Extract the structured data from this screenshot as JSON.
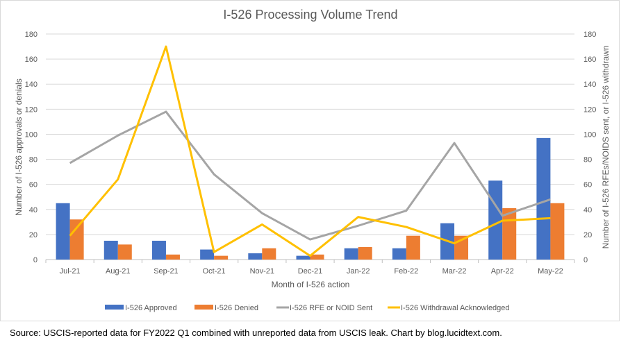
{
  "chart_data": {
    "type": "bar+line",
    "title": "I-526 Processing Volume Trend",
    "xlabel": "Month of I-526 action",
    "ylabel_left": "Number of I-526 approvals or denials",
    "ylabel_right": "Number of I-526 RFEs/NOIDS sent, or I-526 withdrawn",
    "categories": [
      "Jul-21",
      "Aug-21",
      "Sep-21",
      "Oct-21",
      "Nov-21",
      "Dec-21",
      "Jan-22",
      "Feb-22",
      "Mar-22",
      "Apr-22",
      "May-22"
    ],
    "ylim_left": [
      0,
      180
    ],
    "ylim_right": [
      0,
      180
    ],
    "yticks": [
      0,
      20,
      40,
      60,
      80,
      100,
      120,
      140,
      160,
      180
    ],
    "grid": true,
    "legend_position": "bottom",
    "series": [
      {
        "name": "I-526 Approved",
        "type": "bar",
        "axis": "left",
        "color": "#4472C4",
        "values": [
          45,
          15,
          15,
          8,
          5,
          3,
          9,
          9,
          29,
          63,
          97
        ]
      },
      {
        "name": "I-526 Denied",
        "type": "bar",
        "axis": "left",
        "color": "#ED7D31",
        "values": [
          32,
          12,
          4,
          3,
          9,
          4,
          10,
          19,
          19,
          41,
          45
        ]
      },
      {
        "name": "I-526 RFE or NOID Sent",
        "type": "line",
        "axis": "right",
        "color": "#A5A5A5",
        "values": [
          77,
          99,
          118,
          68,
          37,
          16,
          27,
          39,
          93,
          35,
          48
        ]
      },
      {
        "name": "I-526 Withdrawal Acknowledged",
        "type": "line",
        "axis": "right",
        "color": "#FFC000",
        "values": [
          19,
          64,
          170,
          6,
          28,
          3,
          34,
          26,
          13,
          31,
          33
        ]
      }
    ]
  },
  "source": "Source: USCIS-reported data for FY2022 Q1 combined with unreported data from USCIS leak. Chart by blog.lucidtext.com."
}
